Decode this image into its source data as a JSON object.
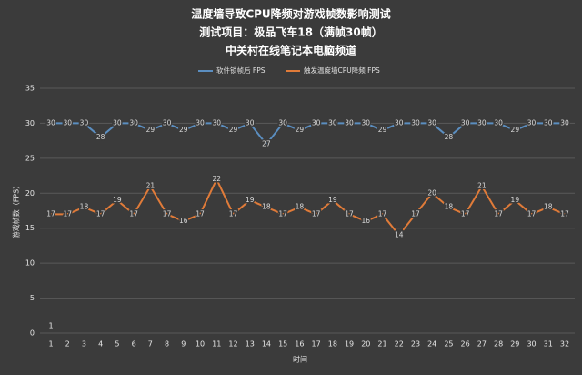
{
  "chart_data": {
    "type": "line",
    "title": "温度墙导致CPU降频对游戏帧数影响测试",
    "subtitle": "测试项目：极品飞车18（满帧30帧）",
    "source": "中关村在线笔记本电脑频道",
    "x_label": "时间",
    "y_label": "游戏帧数（FPS）",
    "annotation": "1",
    "categories": [
      "1",
      "2",
      "3",
      "4",
      "5",
      "6",
      "7",
      "8",
      "9",
      "10",
      "11",
      "12",
      "13",
      "14",
      "15",
      "16",
      "17",
      "18",
      "19",
      "20",
      "21",
      "22",
      "23",
      "24",
      "25",
      "26",
      "27",
      "28",
      "29",
      "30",
      "31",
      "32"
    ],
    "series": [
      {
        "name": "软件锁帧后 FPS",
        "color": "#5b8ec0",
        "values": [
          30,
          30,
          30,
          28,
          30,
          30,
          29,
          30,
          29,
          30,
          30,
          29,
          30,
          27,
          30,
          29,
          30,
          30,
          30,
          30,
          29,
          30,
          30,
          30,
          28,
          30,
          30,
          30,
          29,
          30,
          30,
          30
        ]
      },
      {
        "name": "触发温度墙CPU降频 FPS",
        "color": "#e07b39",
        "values": [
          17,
          17,
          18,
          17,
          19,
          17,
          21,
          17,
          16,
          17,
          22,
          17,
          19,
          18,
          17,
          18,
          17,
          19,
          17,
          16,
          17,
          14,
          17,
          20,
          18,
          17,
          21,
          17,
          19,
          17,
          18,
          17
        ]
      }
    ],
    "ylim": [
      0,
      35
    ],
    "yticks": [
      0,
      5,
      10,
      15,
      20,
      25,
      30,
      35
    ],
    "grid": true,
    "legend": "top"
  }
}
